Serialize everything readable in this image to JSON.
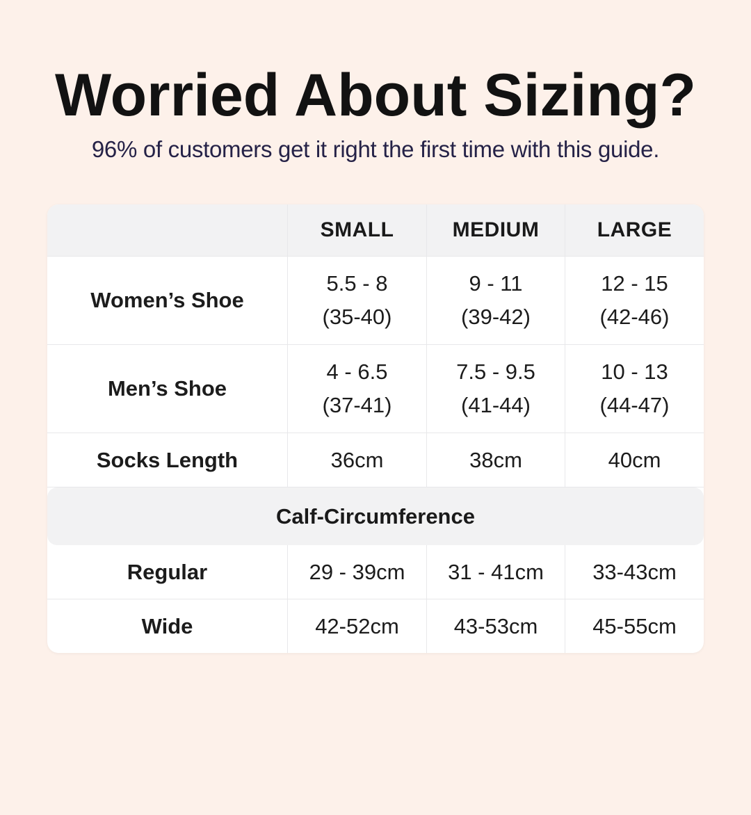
{
  "colors": {
    "page_background": "#fdf1ea",
    "table_background": "#ffffff",
    "band_gray": "#f2f2f3",
    "grid_line": "#e8e8ea",
    "title_color": "#121212",
    "subtitle_color": "#252247"
  },
  "header": {
    "title": "Worried About Sizing?",
    "subtitle": "96% of customers get it right the first time with this guide."
  },
  "table": {
    "columns": [
      "",
      "SMALL",
      "MEDIUM",
      "LARGE"
    ],
    "rows": [
      {
        "label": "Women’s Shoe",
        "cells": [
          {
            "line1": "5.5 - 8",
            "line2": "(35-40)"
          },
          {
            "line1": "9 - 11",
            "line2": "(39-42)"
          },
          {
            "line1": "12 - 15",
            "line2": "(42-46)"
          }
        ]
      },
      {
        "label": "Men’s Shoe",
        "cells": [
          {
            "line1": "4 - 6.5",
            "line2": "(37-41)"
          },
          {
            "line1": "7.5 - 9.5",
            "line2": "(41-44)"
          },
          {
            "line1": "10 - 13",
            "line2": "(44-47)"
          }
        ]
      },
      {
        "label": "Socks Length",
        "cells": [
          {
            "line1": "36cm"
          },
          {
            "line1": "38cm"
          },
          {
            "line1": "40cm"
          }
        ]
      }
    ],
    "section_header": "Calf-Circumference",
    "calf_rows": [
      {
        "label": "Regular",
        "cells": [
          "29 - 39cm",
          "31 - 41cm",
          "33-43cm"
        ]
      },
      {
        "label": "Wide",
        "cells": [
          "42-52cm",
          "43-53cm",
          "45-55cm"
        ]
      }
    ]
  }
}
